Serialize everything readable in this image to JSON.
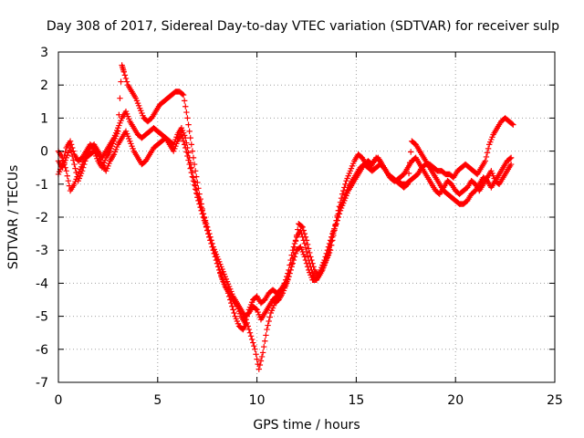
{
  "chart_data": {
    "type": "scatter",
    "title": "Day 308 of 2017, Sidereal Day-to-day VTEC variation (SDTVAR) for receiver sulp",
    "xlabel": "GPS time / hours",
    "ylabel": "SDTVAR / TECUs",
    "xlim": [
      0,
      25
    ],
    "ylim": [
      -7,
      3
    ],
    "xticks": [
      "0",
      "5",
      "10",
      "15",
      "20",
      "25"
    ],
    "yticks": [
      "3",
      "2",
      "1",
      "0",
      "-1",
      "-2",
      "-3",
      "-4",
      "-5",
      "-6",
      "-7"
    ],
    "grid": true,
    "marker": "+",
    "color": "#ff0000",
    "series": [
      {
        "x": [
          0.0,
          0.2,
          0.4,
          0.6,
          0.8,
          1.0,
          1.2,
          1.4,
          1.6,
          1.8,
          2.0,
          2.2,
          2.4,
          2.6,
          2.8,
          3.0,
          3.2,
          3.3,
          3.5,
          3.7,
          3.9,
          4.1,
          4.3,
          4.5,
          4.7,
          4.9,
          5.1,
          5.3,
          5.5,
          5.7,
          5.9,
          6.1,
          6.3,
          6.5,
          6.7,
          6.9,
          7.1,
          7.3,
          7.5,
          7.7,
          7.9,
          8.1,
          8.3,
          8.5,
          8.7,
          8.9,
          9.1,
          9.3,
          9.5,
          9.7,
          9.9,
          10.1,
          10.3,
          10.5,
          10.7,
          10.9,
          11.1,
          11.3,
          11.5,
          11.7,
          11.9,
          12.1,
          12.3,
          12.5,
          12.7,
          12.9,
          13.1,
          13.3,
          13.5,
          13.7,
          13.9,
          14.1,
          14.3,
          14.5,
          14.7,
          14.9,
          15.1,
          15.3,
          15.5,
          15.7,
          15.9,
          16.1,
          16.3,
          16.5,
          16.7,
          16.9,
          17.1,
          17.3,
          17.5,
          17.7,
          17.9,
          18.1,
          18.3,
          18.5,
          18.7,
          18.9,
          19.1,
          19.3,
          19.5,
          19.7,
          19.9,
          20.1,
          20.3,
          20.5,
          20.7,
          20.9,
          21.1,
          21.3,
          21.5,
          21.7,
          21.9,
          22.1,
          22.3,
          22.5,
          22.7,
          22.9
        ],
        "y": [
          -0.3,
          -0.5,
          -0.2,
          0.1,
          -0.4,
          -0.9,
          -0.6,
          -0.2,
          -0.1,
          0.0,
          -0.3,
          -0.5,
          -0.2,
          0.0,
          0.3,
          0.6,
          2.6,
          2.4,
          2.0,
          1.8,
          1.6,
          1.3,
          1.0,
          0.9,
          1.0,
          1.2,
          1.4,
          1.5,
          1.6,
          1.7,
          1.8,
          1.8,
          1.7,
          1.0,
          0.2,
          -0.6,
          -1.3,
          -1.9,
          -2.4,
          -2.8,
          -3.2,
          -3.6,
          -3.9,
          -4.2,
          -4.6,
          -5.0,
          -5.3,
          -5.4,
          -5.2,
          -5.6,
          -6.0,
          -6.6,
          -6.1,
          -5.4,
          -4.9,
          -4.6,
          -4.5,
          -4.3,
          -4.0,
          -3.6,
          -2.9,
          -2.2,
          -2.3,
          -2.7,
          -3.2,
          -3.6,
          -3.8,
          -3.6,
          -3.3,
          -3.0,
          -2.4,
          -1.8,
          -1.3,
          -0.9,
          -0.6,
          -0.3,
          -0.1,
          -0.2,
          -0.4,
          -0.5,
          -0.3,
          -0.2,
          -0.4,
          -0.6,
          -0.8,
          -0.9,
          -0.9,
          -1.0,
          -1.0,
          -0.9,
          -0.8,
          -0.7,
          -0.5,
          -0.4,
          -0.4,
          -0.5,
          -0.6,
          -0.6,
          -0.7,
          -0.7,
          -0.8,
          -0.6,
          -0.5,
          -0.4,
          -0.5,
          -0.6,
          -0.7,
          -0.5,
          -0.3,
          0.2,
          0.5,
          0.7,
          0.9,
          1.0,
          0.9,
          0.8
        ]
      },
      {
        "x": [
          0.0,
          0.2,
          0.4,
          0.6,
          0.8,
          1.0,
          1.2,
          1.4,
          1.6,
          1.8,
          2.0,
          2.2,
          2.4,
          2.6,
          2.8,
          3.0,
          3.2,
          3.4,
          3.6,
          3.8,
          4.0,
          4.2,
          4.4,
          4.6,
          4.8,
          5.0,
          5.2,
          5.4,
          5.6,
          5.8,
          6.0,
          6.2,
          6.4,
          6.6,
          6.8,
          7.0,
          7.2,
          7.4,
          7.6,
          7.8,
          8.0,
          8.2,
          8.4,
          8.6,
          8.8,
          9.0,
          9.2,
          9.4,
          9.6,
          9.8,
          10.0,
          10.2,
          10.4,
          10.6,
          10.8,
          11.0,
          11.2,
          11.4,
          11.6,
          11.8,
          12.0,
          12.2,
          12.4,
          12.6,
          12.8,
          13.0,
          13.2,
          13.4,
          13.6,
          13.8,
          14.0,
          14.2,
          14.4,
          14.6,
          14.8,
          15.0,
          15.2,
          15.4,
          15.6,
          15.8,
          16.0,
          16.2,
          16.4,
          16.6,
          16.8,
          17.0,
          17.2,
          17.4,
          17.6,
          17.8,
          18.0,
          18.2,
          18.4,
          18.6,
          18.8,
          19.0,
          19.2,
          19.4,
          19.6,
          19.8,
          20.0,
          20.2,
          20.4,
          20.6,
          20.8,
          21.0,
          21.2,
          21.4,
          21.6,
          21.8,
          22.0,
          22.2,
          22.4,
          22.6,
          22.8
        ],
        "y": [
          0.0,
          -0.2,
          -0.6,
          -1.2,
          -1.0,
          -0.7,
          -0.4,
          -0.1,
          0.1,
          0.2,
          0.0,
          -0.2,
          0.0,
          0.2,
          0.4,
          0.7,
          1.0,
          1.2,
          0.9,
          0.7,
          0.5,
          0.4,
          0.5,
          0.6,
          0.7,
          0.6,
          0.5,
          0.4,
          0.3,
          0.2,
          0.5,
          0.7,
          0.4,
          -0.2,
          -0.8,
          -1.3,
          -1.7,
          -2.1,
          -2.5,
          -2.9,
          -3.2,
          -3.5,
          -3.8,
          -4.1,
          -4.4,
          -4.6,
          -4.8,
          -5.0,
          -4.9,
          -4.7,
          -4.8,
          -5.1,
          -4.9,
          -4.7,
          -4.5,
          -4.4,
          -4.2,
          -4.0,
          -3.6,
          -3.0,
          -2.6,
          -2.4,
          -2.8,
          -3.3,
          -3.7,
          -3.9,
          -3.7,
          -3.4,
          -3.1,
          -2.6,
          -2.1,
          -1.7,
          -1.4,
          -1.1,
          -0.9,
          -0.7,
          -0.5,
          -0.4,
          -0.5,
          -0.6,
          -0.5,
          -0.4,
          -0.5,
          -0.7,
          -0.8,
          -0.9,
          -1.0,
          -1.1,
          -1.0,
          0.3,
          0.2,
          0.0,
          -0.2,
          -0.4,
          -0.6,
          -0.8,
          -1.0,
          -1.2,
          -1.3,
          -1.4,
          -1.5,
          -1.6,
          -1.6,
          -1.5,
          -1.3,
          -1.2,
          -1.0,
          -0.8,
          -0.9,
          -1.1,
          -0.9,
          -0.7,
          -0.5,
          -0.3,
          -0.2
        ]
      },
      {
        "x": [
          0.0,
          0.2,
          0.4,
          0.6,
          0.8,
          1.0,
          1.2,
          1.4,
          1.6,
          1.8,
          2.0,
          2.2,
          2.4,
          2.6,
          2.8,
          3.0,
          3.2,
          3.4,
          3.6,
          3.8,
          4.0,
          4.2,
          4.4,
          4.6,
          4.8,
          5.0,
          5.2,
          5.4,
          5.6,
          5.8,
          6.0,
          6.2,
          6.4,
          6.6,
          6.8,
          7.0,
          7.2,
          7.4,
          7.6,
          7.8,
          8.0,
          8.2,
          8.4,
          8.6,
          8.8,
          9.0,
          9.2,
          9.4,
          9.6,
          9.8,
          10.0,
          10.2,
          10.4,
          10.6,
          10.8,
          11.0,
          11.2,
          11.4,
          11.6,
          11.8,
          12.0,
          12.2,
          12.4,
          12.6,
          12.8,
          13.0,
          13.2,
          13.4,
          13.6,
          13.8,
          14.0,
          14.2,
          14.4,
          14.6,
          14.8,
          15.0,
          15.2,
          15.4,
          15.6,
          15.8,
          16.0,
          16.2,
          16.4,
          16.6,
          16.8,
          17.0,
          17.2,
          17.4,
          17.6,
          17.8,
          18.0,
          18.2,
          18.4,
          18.6,
          18.8,
          19.0,
          19.2,
          19.4,
          19.6,
          19.8,
          20.0,
          20.2,
          20.4,
          20.6,
          20.8,
          21.0,
          21.2,
          21.4,
          21.6,
          21.8,
          22.0,
          22.2,
          22.4,
          22.6,
          22.8
        ],
        "y": [
          -0.7,
          -0.4,
          0.1,
          0.3,
          -0.1,
          -0.3,
          -0.2,
          0.0,
          0.2,
          0.1,
          -0.1,
          -0.4,
          -0.6,
          -0.3,
          -0.1,
          0.2,
          0.4,
          0.6,
          0.3,
          0.0,
          -0.2,
          -0.4,
          -0.3,
          -0.1,
          0.1,
          0.2,
          0.3,
          0.4,
          0.2,
          0.0,
          0.3,
          0.5,
          0.1,
          -0.4,
          -0.9,
          -1.4,
          -1.8,
          -2.2,
          -2.6,
          -3.0,
          -3.4,
          -3.8,
          -4.1,
          -4.3,
          -4.5,
          -4.7,
          -5.0,
          -5.2,
          -4.8,
          -4.5,
          -4.4,
          -4.6,
          -4.5,
          -4.3,
          -4.2,
          -4.3,
          -4.2,
          -4.1,
          -3.8,
          -3.4,
          -3.0,
          -2.9,
          -3.2,
          -3.6,
          -3.9,
          -3.9,
          -3.6,
          -3.3,
          -2.9,
          -2.5,
          -2.2,
          -1.8,
          -1.5,
          -1.2,
          -1.0,
          -0.8,
          -0.6,
          -0.4,
          -0.3,
          -0.4,
          -0.2,
          -0.3,
          -0.5,
          -0.7,
          -0.8,
          -0.9,
          -0.8,
          -0.7,
          -0.5,
          -0.3,
          -0.2,
          -0.4,
          -0.6,
          -0.8,
          -1.0,
          -1.2,
          -1.3,
          -1.1,
          -0.9,
          -1.0,
          -1.2,
          -1.3,
          -1.2,
          -1.1,
          -0.9,
          -1.0,
          -1.2,
          -1.0,
          -0.8,
          -0.6,
          -0.9,
          -1.0,
          -0.8,
          -0.6,
          -0.4
        ]
      }
    ]
  }
}
